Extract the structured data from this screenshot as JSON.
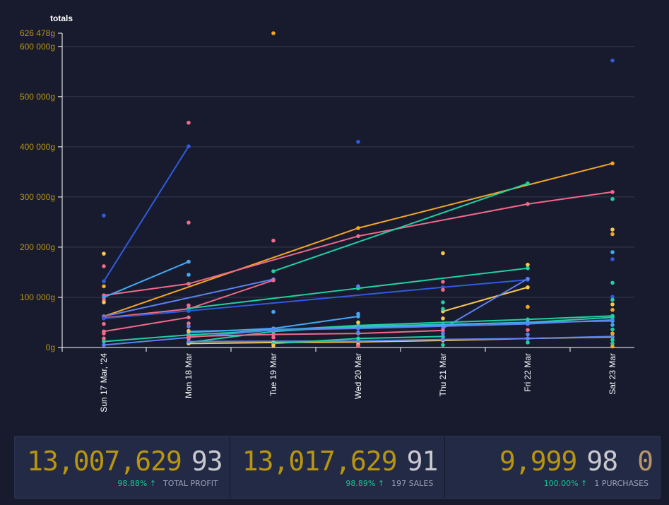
{
  "chart_data": {
    "type": "line",
    "title": "totals",
    "categories": [
      "Sun 17 Mar, '24",
      "Mon 18 Mar",
      "Tue 19 Mar",
      "Wed 20 Mar",
      "Thu 21 Mar",
      "Fri 22 Mar",
      "Sat 23 Mar"
    ],
    "y_ticks": [
      "0g",
      "100 000g",
      "200 000g",
      "300 000g",
      "400 000g",
      "500 000g",
      "600 000g"
    ],
    "y_tick_values": [
      0,
      100000,
      200000,
      300000,
      400000,
      500000,
      600000
    ],
    "y_max_label": "626 478g",
    "ylim": [
      0,
      626478
    ],
    "series": [
      {
        "color": "#f5a623",
        "points": [
          [
            0,
            62000
          ],
          [
            3,
            238000
          ],
          [
            6,
            367000
          ]
        ]
      },
      {
        "color": "#f06a8a",
        "points": [
          [
            0,
            104000
          ],
          [
            1,
            127000
          ],
          [
            3,
            222000
          ],
          [
            5,
            286000
          ],
          [
            6,
            310000
          ]
        ]
      },
      {
        "color": "#1fd1a1",
        "points": [
          [
            2,
            152000
          ],
          [
            5,
            327000
          ]
        ]
      },
      {
        "color": "#2f5be0",
        "points": [
          [
            0,
            132000
          ],
          [
            1,
            401000
          ]
        ]
      },
      {
        "color": "#45a8f5",
        "points": [
          [
            0,
            100000
          ],
          [
            1,
            171000
          ]
        ]
      },
      {
        "color": "#5b82f0",
        "points": [
          [
            0,
            62000
          ],
          [
            2,
            136000
          ]
        ]
      },
      {
        "color": "#f06a8a",
        "points": [
          [
            0,
            59000
          ],
          [
            1,
            77000
          ],
          [
            2,
            134000
          ]
        ]
      },
      {
        "color": "#1fd1a1",
        "points": [
          [
            1,
            78000
          ],
          [
            3,
            118000
          ],
          [
            5,
            158000
          ]
        ]
      },
      {
        "color": "#2f5be0",
        "points": [
          [
            0,
            58000
          ],
          [
            1,
            73000
          ],
          [
            4,
            120000
          ],
          [
            5,
            135000
          ]
        ]
      },
      {
        "color": "#f06a8a",
        "points": [
          [
            0,
            32000
          ],
          [
            1,
            60000
          ]
        ]
      },
      {
        "color": "#f9c74f",
        "points": [
          [
            4,
            72000
          ],
          [
            5,
            120000
          ]
        ]
      },
      {
        "color": "#5b82f0",
        "points": [
          [
            4,
            38000
          ],
          [
            5,
            137000
          ]
        ]
      },
      {
        "color": "#45a8f5",
        "points": [
          [
            1,
            30000
          ],
          [
            2,
            38000
          ],
          [
            3,
            62000
          ]
        ]
      },
      {
        "color": "#1fd1a1",
        "points": [
          [
            0,
            12000
          ],
          [
            1,
            25000
          ],
          [
            3,
            44000
          ],
          [
            5,
            56000
          ],
          [
            6,
            63000
          ]
        ]
      },
      {
        "color": "#1fd1a1",
        "points": [
          [
            1,
            10000
          ],
          [
            2,
            32000
          ],
          [
            3,
            42000
          ],
          [
            5,
            50000
          ],
          [
            6,
            60000
          ]
        ]
      },
      {
        "color": "#45a8f5",
        "points": [
          [
            1,
            32000
          ],
          [
            3,
            40000
          ],
          [
            4,
            45000
          ],
          [
            5,
            50000
          ],
          [
            6,
            53000
          ]
        ]
      },
      {
        "color": "#5b82f0",
        "points": [
          [
            0,
            5000
          ],
          [
            1,
            20000
          ],
          [
            2,
            35000
          ],
          [
            3,
            38000
          ],
          [
            5,
            47000
          ],
          [
            6,
            55000
          ]
        ]
      },
      {
        "color": "#f9c74f",
        "points": [
          [
            1,
            8000
          ],
          [
            2,
            10000
          ],
          [
            3,
            11000
          ],
          [
            4,
            14000
          ],
          [
            5,
            18000
          ],
          [
            6,
            21000
          ]
        ]
      },
      {
        "color": "#5b82f0",
        "points": [
          [
            1,
            12000
          ],
          [
            3,
            13000
          ],
          [
            4,
            16000
          ],
          [
            5,
            18000
          ],
          [
            6,
            22000
          ]
        ]
      },
      {
        "color": "#1fd1a1",
        "points": [
          [
            2,
            8000
          ],
          [
            3,
            18000
          ],
          [
            4,
            22000
          ]
        ]
      },
      {
        "color": "#f06a8a",
        "points": [
          [
            1,
            22000
          ],
          [
            2,
            26000
          ],
          [
            3,
            28000
          ],
          [
            4,
            34000
          ]
        ]
      }
    ],
    "points": [
      {
        "x": 0,
        "y": 263000,
        "color": "#2f5be0"
      },
      {
        "x": 0,
        "y": 187000,
        "color": "#f9c74f"
      },
      {
        "x": 0,
        "y": 162000,
        "color": "#f06a8a"
      },
      {
        "x": 0,
        "y": 122000,
        "color": "#f5a623"
      },
      {
        "x": 0,
        "y": 95000,
        "color": "#f06a8a"
      },
      {
        "x": 0,
        "y": 90000,
        "color": "#f9c74f"
      },
      {
        "x": 0,
        "y": 47000,
        "color": "#f06a8a"
      },
      {
        "x": 0,
        "y": 28000,
        "color": "#f06a8a"
      },
      {
        "x": 0,
        "y": 18000,
        "color": "#f06a8a"
      },
      {
        "x": 1,
        "y": 448000,
        "color": "#f06a8a"
      },
      {
        "x": 1,
        "y": 249000,
        "color": "#f06a8a"
      },
      {
        "x": 1,
        "y": 145000,
        "color": "#45a8f5"
      },
      {
        "x": 1,
        "y": 84000,
        "color": "#f06a8a"
      },
      {
        "x": 1,
        "y": 48000,
        "color": "#f06a8a"
      },
      {
        "x": 1,
        "y": 42000,
        "color": "#5b82f0"
      },
      {
        "x": 1,
        "y": 33000,
        "color": "#f9c74f"
      },
      {
        "x": 1,
        "y": 18000,
        "color": "#f06a8a"
      },
      {
        "x": 2,
        "y": 626478,
        "color": "#f5a623"
      },
      {
        "x": 2,
        "y": 213000,
        "color": "#f06a8a"
      },
      {
        "x": 2,
        "y": 71000,
        "color": "#45a8f5"
      },
      {
        "x": 2,
        "y": 20000,
        "color": "#f06a8a"
      },
      {
        "x": 2,
        "y": 4000,
        "color": "#f9c74f"
      },
      {
        "x": 3,
        "y": 410000,
        "color": "#2f5be0"
      },
      {
        "x": 3,
        "y": 122000,
        "color": "#5b82f0"
      },
      {
        "x": 3,
        "y": 67000,
        "color": "#45a8f5"
      },
      {
        "x": 3,
        "y": 50000,
        "color": "#f9c74f"
      },
      {
        "x": 3,
        "y": 30000,
        "color": "#5b82f0"
      },
      {
        "x": 3,
        "y": 6000,
        "color": "#f9c74f"
      },
      {
        "x": 3,
        "y": 3000,
        "color": "#f06a8a"
      },
      {
        "x": 4,
        "y": 188000,
        "color": "#f9c74f"
      },
      {
        "x": 4,
        "y": 131000,
        "color": "#f06a8a"
      },
      {
        "x": 4,
        "y": 115000,
        "color": "#f06a8a"
      },
      {
        "x": 4,
        "y": 90000,
        "color": "#1fd1a1"
      },
      {
        "x": 4,
        "y": 77000,
        "color": "#1fd1a1"
      },
      {
        "x": 4,
        "y": 58000,
        "color": "#f9c74f"
      },
      {
        "x": 4,
        "y": 28000,
        "color": "#5b82f0"
      },
      {
        "x": 4,
        "y": 5000,
        "color": "#1fd1a1"
      },
      {
        "x": 5,
        "y": 165000,
        "color": "#f9c74f"
      },
      {
        "x": 5,
        "y": 81000,
        "color": "#f5a623"
      },
      {
        "x": 5,
        "y": 35000,
        "color": "#f06a8a"
      },
      {
        "x": 5,
        "y": 26000,
        "color": "#5b82f0"
      },
      {
        "x": 5,
        "y": 10000,
        "color": "#1fd1a1"
      },
      {
        "x": 6,
        "y": 572000,
        "color": "#2f5be0"
      },
      {
        "x": 6,
        "y": 296000,
        "color": "#1fd1a1"
      },
      {
        "x": 6,
        "y": 235000,
        "color": "#f9c74f"
      },
      {
        "x": 6,
        "y": 226000,
        "color": "#f5a623"
      },
      {
        "x": 6,
        "y": 190000,
        "color": "#45a8f5"
      },
      {
        "x": 6,
        "y": 176000,
        "color": "#2f5be0"
      },
      {
        "x": 6,
        "y": 129000,
        "color": "#1fd1a1"
      },
      {
        "x": 6,
        "y": 101000,
        "color": "#2f5be0"
      },
      {
        "x": 6,
        "y": 95000,
        "color": "#1fd1a1"
      },
      {
        "x": 6,
        "y": 86000,
        "color": "#f9c74f"
      },
      {
        "x": 6,
        "y": 75000,
        "color": "#f5a623"
      },
      {
        "x": 6,
        "y": 45000,
        "color": "#45a8f5"
      },
      {
        "x": 6,
        "y": 36000,
        "color": "#1fd1a1"
      },
      {
        "x": 6,
        "y": 28000,
        "color": "#f5a623"
      },
      {
        "x": 6,
        "y": 15000,
        "color": "#1fd1a1"
      },
      {
        "x": 6,
        "y": 8000,
        "color": "#1fd1a1"
      },
      {
        "x": 6,
        "y": 2000,
        "color": "#f5a623"
      }
    ],
    "colors": {
      "axis": "#ffffff",
      "grid": "#35394c",
      "tick": "#b8950f",
      "title": "#ffffff",
      "xlabel": "#ffffff"
    }
  },
  "stats": [
    {
      "value": "13,007,629",
      "cents": "93",
      "percent": "98.88% ↑",
      "label": "TOTAL PROFIT"
    },
    {
      "value": "13,017,629",
      "cents": "91",
      "percent": "98.89% ↑",
      "label": "197 SALES"
    },
    {
      "value": "9,999",
      "cents": "98",
      "extra": "0",
      "percent": "100.00% ↑",
      "label": "1 PURCHASES"
    }
  ]
}
